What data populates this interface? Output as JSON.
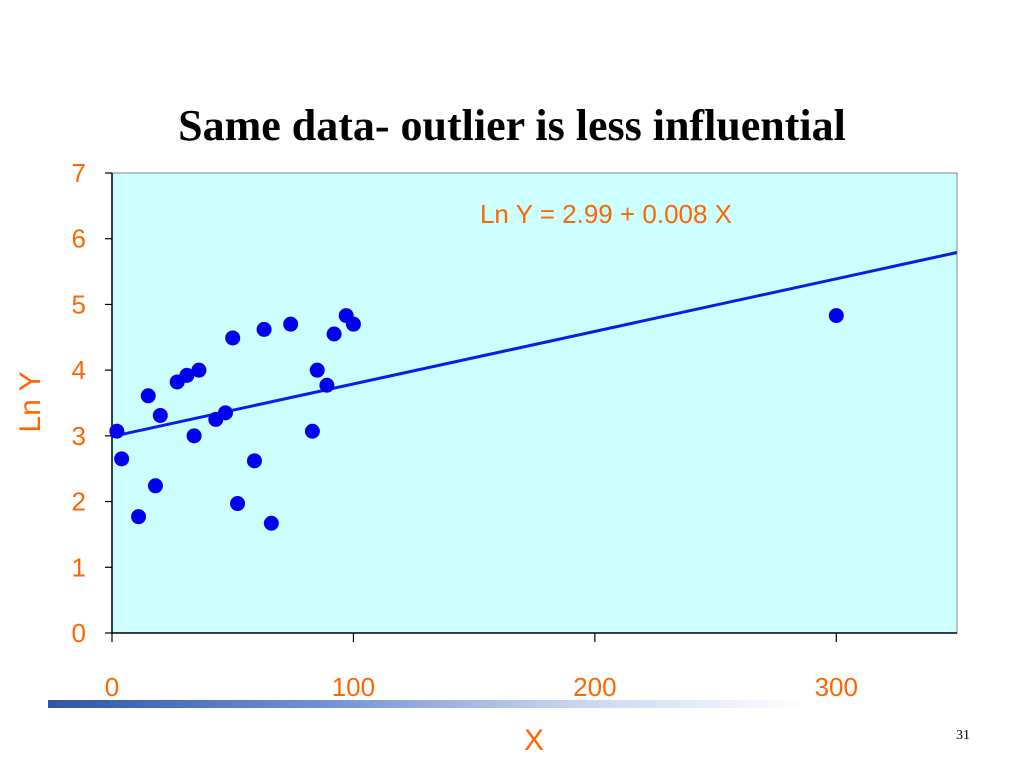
{
  "slide": {
    "title": "Same data- outlier is less influential",
    "page_number": "31"
  },
  "colors": {
    "plot_background": "#ccffff",
    "points": "#0000ee",
    "fit_line": "#0a1ee6",
    "axis_text": "#ff6600",
    "axis_line": "#000000"
  },
  "chart_data": {
    "type": "scatter",
    "title": "",
    "xlabel": "X",
    "ylabel": "Ln Y",
    "xlim": [
      0,
      350
    ],
    "ylim": [
      0,
      7
    ],
    "x_ticks": [
      0,
      100,
      200,
      300
    ],
    "y_ticks": [
      0,
      1,
      2,
      3,
      4,
      5,
      6,
      7
    ],
    "grid": false,
    "annotation": "Ln Y = 2.99 + 0.008 X",
    "fit_line": {
      "intercept": 2.99,
      "slope": 0.008
    },
    "points": [
      {
        "x": 2,
        "y": 3.07
      },
      {
        "x": 4,
        "y": 2.65
      },
      {
        "x": 11,
        "y": 1.77
      },
      {
        "x": 15,
        "y": 3.61
      },
      {
        "x": 18,
        "y": 2.24
      },
      {
        "x": 20,
        "y": 3.31
      },
      {
        "x": 27,
        "y": 3.82
      },
      {
        "x": 31,
        "y": 3.92
      },
      {
        "x": 34,
        "y": 3.0
      },
      {
        "x": 36,
        "y": 4.0
      },
      {
        "x": 43,
        "y": 3.25
      },
      {
        "x": 47,
        "y": 3.35
      },
      {
        "x": 50,
        "y": 4.49
      },
      {
        "x": 52,
        "y": 1.97
      },
      {
        "x": 59,
        "y": 2.62
      },
      {
        "x": 63,
        "y": 4.62
      },
      {
        "x": 66,
        "y": 1.67
      },
      {
        "x": 74,
        "y": 4.7
      },
      {
        "x": 83,
        "y": 3.07
      },
      {
        "x": 85,
        "y": 4.0
      },
      {
        "x": 89,
        "y": 3.77
      },
      {
        "x": 92,
        "y": 4.55
      },
      {
        "x": 97,
        "y": 4.83
      },
      {
        "x": 100,
        "y": 4.7
      },
      {
        "x": 300,
        "y": 4.83
      }
    ]
  }
}
